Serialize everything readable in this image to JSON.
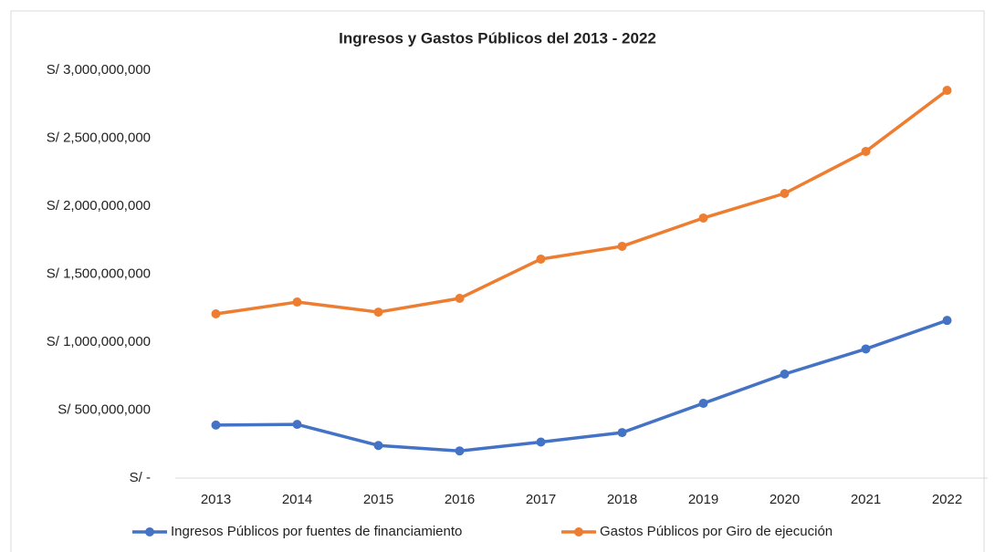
{
  "chart_data": {
    "type": "line",
    "title": "Ingresos y Gastos Públicos del 2013 - 2022",
    "categories": [
      "2013",
      "2014",
      "2015",
      "2016",
      "2017",
      "2018",
      "2019",
      "2020",
      "2021",
      "2022"
    ],
    "series": [
      {
        "name": "Ingresos Públicos por fuentes de financiamiento",
        "color": "#4472c4",
        "values": [
          390000000,
          395000000,
          240000000,
          200000000,
          265000000,
          335000000,
          550000000,
          765000000,
          950000000,
          1160000000
        ]
      },
      {
        "name": "Gastos Públicos por Giro de ejecución",
        "color": "#ed7d31",
        "values": [
          1208000000,
          1295000000,
          1221000000,
          1322000000,
          1611000000,
          1705000000,
          1913000000,
          2094000000,
          2403000000,
          2852000000
        ]
      }
    ],
    "ylim": [
      0,
      3000000000
    ],
    "yticks": [
      {
        "value": 0,
        "label": "S/ -"
      },
      {
        "value": 500000000,
        "label": "S/ 500,000,000"
      },
      {
        "value": 1000000000,
        "label": "S/ 1,000,000,000"
      },
      {
        "value": 1500000000,
        "label": "S/ 1,500,000,000"
      },
      {
        "value": 2000000000,
        "label": "S/ 2,000,000,000"
      },
      {
        "value": 2500000000,
        "label": "S/ 2,500,000,000"
      },
      {
        "value": 3000000000,
        "label": "S/ 3,000,000,000"
      }
    ],
    "grid": false,
    "legend": "bottom"
  }
}
